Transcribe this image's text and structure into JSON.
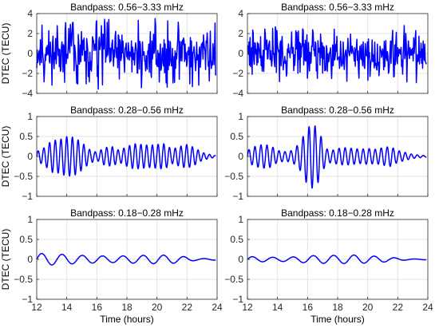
{
  "figure": {
    "line_color": "#0000ff",
    "grid_color": "#e3e3e3",
    "axis_color": "#262626"
  },
  "chart_data": [
    {
      "type": "line",
      "row": 1,
      "col": 1,
      "title": "Bandpass: 0.56−3.33 mHz",
      "xlabel": "",
      "ylabel": "DTEC (TECU)",
      "xlim": [
        12,
        24
      ],
      "ylim": [
        -4,
        4
      ],
      "xticks": [
        12,
        14,
        16,
        18,
        20,
        22,
        24
      ],
      "yticks": [
        -4,
        -2,
        0,
        2,
        4
      ],
      "ytick_labels": [
        "−4",
        "−2",
        "0",
        "2",
        "4"
      ],
      "show_xtick_labels": false,
      "grid": true,
      "signal": {
        "kind": "noise",
        "x_start": 12.0,
        "x_end": 23.9,
        "amplitude": 1.45,
        "peak": 3.6,
        "seed": 11
      },
      "series": [
        {
          "values_note": "",
          "x": [],
          "y": []
        }
      ]
    },
    {
      "type": "line",
      "row": 1,
      "col": 2,
      "title": "Bandpass: 0.56−3.33 mHz",
      "xlabel": "",
      "ylabel": "",
      "xlim": [
        12,
        24
      ],
      "ylim": [
        -4,
        4
      ],
      "xticks": [
        12,
        14,
        16,
        18,
        20,
        22,
        24
      ],
      "yticks": [
        -4,
        -2,
        0,
        2,
        4
      ],
      "ytick_labels": [
        "−4",
        "−2",
        "0",
        "2",
        "4"
      ],
      "show_xtick_labels": false,
      "grid": true,
      "signal": {
        "kind": "noise",
        "x_start": 12.0,
        "x_end": 23.9,
        "amplitude": 1.3,
        "peak": 3.0,
        "seed": 29
      },
      "series": [
        {
          "x": [],
          "y": []
        }
      ]
    },
    {
      "type": "line",
      "row": 2,
      "col": 1,
      "title": "Bandpass: 0.28−0.56 mHz",
      "xlabel": "",
      "ylabel": "DTEC (TECU)",
      "xlim": [
        12,
        24
      ],
      "ylim": [
        -1,
        1
      ],
      "xticks": [
        12,
        14,
        16,
        18,
        20,
        22,
        24
      ],
      "yticks": [
        -1,
        -0.5,
        0,
        0.5,
        1
      ],
      "ytick_labels": [
        "−1",
        "−0.5",
        "0",
        "0.5",
        "1"
      ],
      "show_xtick_labels": false,
      "grid": true,
      "signal": {
        "kind": "packets",
        "x_start": 12.0,
        "x_end": 23.9,
        "period": 0.38,
        "envelope_x": [
          12.0,
          12.5,
          13.0,
          13.5,
          14.0,
          14.5,
          15.0,
          15.5,
          16.0,
          16.5,
          17.0,
          17.5,
          18.0,
          18.5,
          19.0,
          19.5,
          20.0,
          20.5,
          21.0,
          21.5,
          22.0,
          22.5,
          23.0,
          23.5,
          23.9
        ],
        "envelope_y": [
          0.12,
          0.22,
          0.4,
          0.42,
          0.5,
          0.48,
          0.35,
          0.18,
          0.1,
          0.22,
          0.25,
          0.15,
          0.25,
          0.32,
          0.3,
          0.28,
          0.3,
          0.32,
          0.18,
          0.25,
          0.3,
          0.22,
          0.1,
          0.05,
          0.02
        ]
      },
      "series": [
        {
          "x": [],
          "y": []
        }
      ]
    },
    {
      "type": "line",
      "row": 2,
      "col": 2,
      "title": "Bandpass: 0.28−0.56 mHz",
      "xlabel": "",
      "ylabel": "",
      "xlim": [
        12,
        24
      ],
      "ylim": [
        -1,
        1
      ],
      "xticks": [
        12,
        14,
        16,
        18,
        20,
        22,
        24
      ],
      "yticks": [
        -1,
        -0.5,
        0,
        0.5,
        1
      ],
      "ytick_labels": [
        "−1",
        "−0.5",
        "0",
        "0.5",
        "1"
      ],
      "show_xtick_labels": false,
      "grid": true,
      "signal": {
        "kind": "packets",
        "x_start": 12.0,
        "x_end": 23.9,
        "period": 0.4,
        "envelope_x": [
          12.0,
          12.5,
          13.0,
          13.5,
          14.0,
          14.5,
          15.0,
          15.5,
          16.0,
          16.4,
          16.8,
          17.2,
          17.6,
          18.0,
          18.5,
          19.0,
          19.5,
          20.0,
          20.5,
          21.0,
          21.5,
          22.0,
          22.5,
          23.0,
          23.5,
          23.9
        ],
        "envelope_y": [
          0.15,
          0.25,
          0.3,
          0.28,
          0.15,
          0.12,
          0.15,
          0.35,
          0.72,
          0.82,
          0.6,
          0.2,
          0.15,
          0.2,
          0.22,
          0.2,
          0.18,
          0.2,
          0.18,
          0.22,
          0.25,
          0.15,
          0.1,
          0.05,
          0.03,
          0.02
        ]
      },
      "series": [
        {
          "x": [],
          "y": []
        }
      ]
    },
    {
      "type": "line",
      "row": 3,
      "col": 1,
      "title": "Bandpass: 0.18−0.28 mHz",
      "xlabel": "Time (hours)",
      "ylabel": "DTEC (TECU)",
      "xlim": [
        12,
        24
      ],
      "ylim": [
        -1,
        1
      ],
      "xticks": [
        12,
        14,
        16,
        18,
        20,
        22,
        24
      ],
      "yticks": [
        -1,
        -0.5,
        0,
        0.5,
        1
      ],
      "ytick_labels": [
        "−1",
        "−0.5",
        "0",
        "0.5",
        "1"
      ],
      "xtick_labels": [
        "12",
        "14",
        "16",
        "18",
        "20",
        "22",
        "24"
      ],
      "show_xtick_labels": true,
      "grid": true,
      "signal": {
        "kind": "packets",
        "x_start": 12.0,
        "x_end": 23.9,
        "period": 1.35,
        "envelope_x": [
          12.0,
          13.0,
          14.0,
          15.0,
          16.0,
          17.0,
          18.0,
          19.0,
          20.0,
          21.0,
          22.0,
          22.5,
          23.0,
          23.9
        ],
        "envelope_y": [
          0.15,
          0.14,
          0.12,
          0.1,
          0.09,
          0.08,
          0.09,
          0.1,
          0.11,
          0.1,
          0.06,
          0.03,
          0.02,
          0.02
        ]
      },
      "series": [
        {
          "x": [],
          "y": []
        }
      ]
    },
    {
      "type": "line",
      "row": 3,
      "col": 2,
      "title": "Bandpass: 0.18−0.28 mHz",
      "xlabel": "Time (hours)",
      "ylabel": "",
      "xlim": [
        12,
        24
      ],
      "ylim": [
        -1,
        1
      ],
      "xticks": [
        12,
        14,
        16,
        18,
        20,
        22,
        24
      ],
      "yticks": [
        -1,
        -0.5,
        0,
        0.5,
        1
      ],
      "ytick_labels": [
        "−1",
        "−0.5",
        "0",
        "0.5",
        "1"
      ],
      "xtick_labels": [
        "12",
        "14",
        "16",
        "18",
        "20",
        "22",
        "24"
      ],
      "show_xtick_labels": true,
      "grid": true,
      "signal": {
        "kind": "packets",
        "x_start": 12.0,
        "x_end": 23.9,
        "period": 1.35,
        "envelope_x": [
          12.0,
          13.0,
          14.0,
          15.0,
          16.0,
          17.0,
          18.0,
          19.0,
          20.0,
          21.0,
          21.8,
          22.5,
          23.0,
          23.9
        ],
        "envelope_y": [
          0.07,
          0.06,
          0.05,
          0.06,
          0.09,
          0.1,
          0.1,
          0.11,
          0.09,
          0.07,
          0.04,
          0.02,
          0.01,
          0.01
        ]
      },
      "series": [
        {
          "x": [],
          "y": []
        }
      ]
    }
  ]
}
